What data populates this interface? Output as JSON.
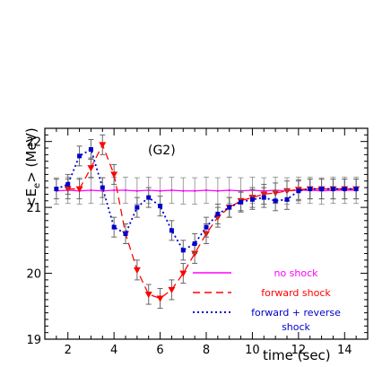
{
  "chart_data": {
    "type": "line",
    "annotation": "(G2)",
    "xlabel": "time (sec)",
    "ylabel": "<E",
    "ylabel_sub": "e",
    "ylabel_rest": "> (MeV)",
    "xlim": [
      1,
      15
    ],
    "ylim": [
      19,
      22.2
    ],
    "x_ticks": [
      2,
      4,
      6,
      8,
      10,
      12,
      14
    ],
    "y_ticks": [
      19,
      20,
      21,
      22
    ],
    "legend_position": "bottom-right",
    "series": [
      {
        "name": "no shock",
        "color": "#ff00ff",
        "style": "solid",
        "marker": "none",
        "x": [
          1.5,
          2,
          2.5,
          3,
          3.5,
          4,
          4.5,
          5,
          5.5,
          6,
          6.5,
          7,
          7.5,
          8,
          8.5,
          9,
          9.5,
          10,
          10.5,
          11,
          11.5,
          12,
          12.5,
          13,
          13.5,
          14,
          14.5
        ],
        "y": [
          21.25,
          21.26,
          21.25,
          21.26,
          21.25,
          21.26,
          21.26,
          21.25,
          21.26,
          21.25,
          21.26,
          21.25,
          21.25,
          21.26,
          21.25,
          21.26,
          21.25,
          21.26,
          21.25,
          21.26,
          21.25,
          21.26,
          21.26,
          21.25,
          21.26,
          21.26,
          21.26
        ]
      },
      {
        "name": "forward shock",
        "color": "#ff0000",
        "style": "dashed",
        "marker": "triangle-down",
        "x": [
          2,
          2.5,
          3,
          3.5,
          4,
          4.5,
          5,
          5.5,
          6,
          6.5,
          7,
          7.5,
          8,
          8.5,
          9,
          9.5,
          10,
          10.5,
          11,
          11.5,
          12,
          12.5,
          13,
          13.5,
          14,
          14.5
        ],
        "y": [
          21.28,
          21.28,
          21.6,
          21.95,
          21.5,
          20.6,
          20.05,
          19.68,
          19.62,
          19.75,
          20.0,
          20.3,
          20.6,
          20.85,
          21.0,
          21.1,
          21.15,
          21.2,
          21.22,
          21.25,
          21.27,
          21.28,
          21.28,
          21.28,
          21.28,
          21.28
        ]
      },
      {
        "name": "forward + reverse",
        "name_line2": "shock",
        "color": "#0000cc",
        "style": "dotted",
        "marker": "square",
        "x": [
          1.5,
          2,
          2.5,
          3,
          3.5,
          4,
          4.5,
          5,
          5.5,
          6,
          6.5,
          7,
          7.5,
          8,
          8.5,
          9,
          9.5,
          10,
          10.5,
          11,
          11.5,
          12,
          12.5,
          13,
          13.5,
          14,
          14.5
        ],
        "y": [
          21.28,
          21.35,
          21.78,
          21.88,
          21.3,
          20.7,
          20.6,
          21.0,
          21.15,
          21.02,
          20.65,
          20.35,
          20.45,
          20.7,
          20.9,
          21.0,
          21.08,
          21.12,
          21.15,
          21.1,
          21.12,
          21.25,
          21.28,
          21.28,
          21.28,
          21.28,
          21.28
        ]
      }
    ]
  }
}
